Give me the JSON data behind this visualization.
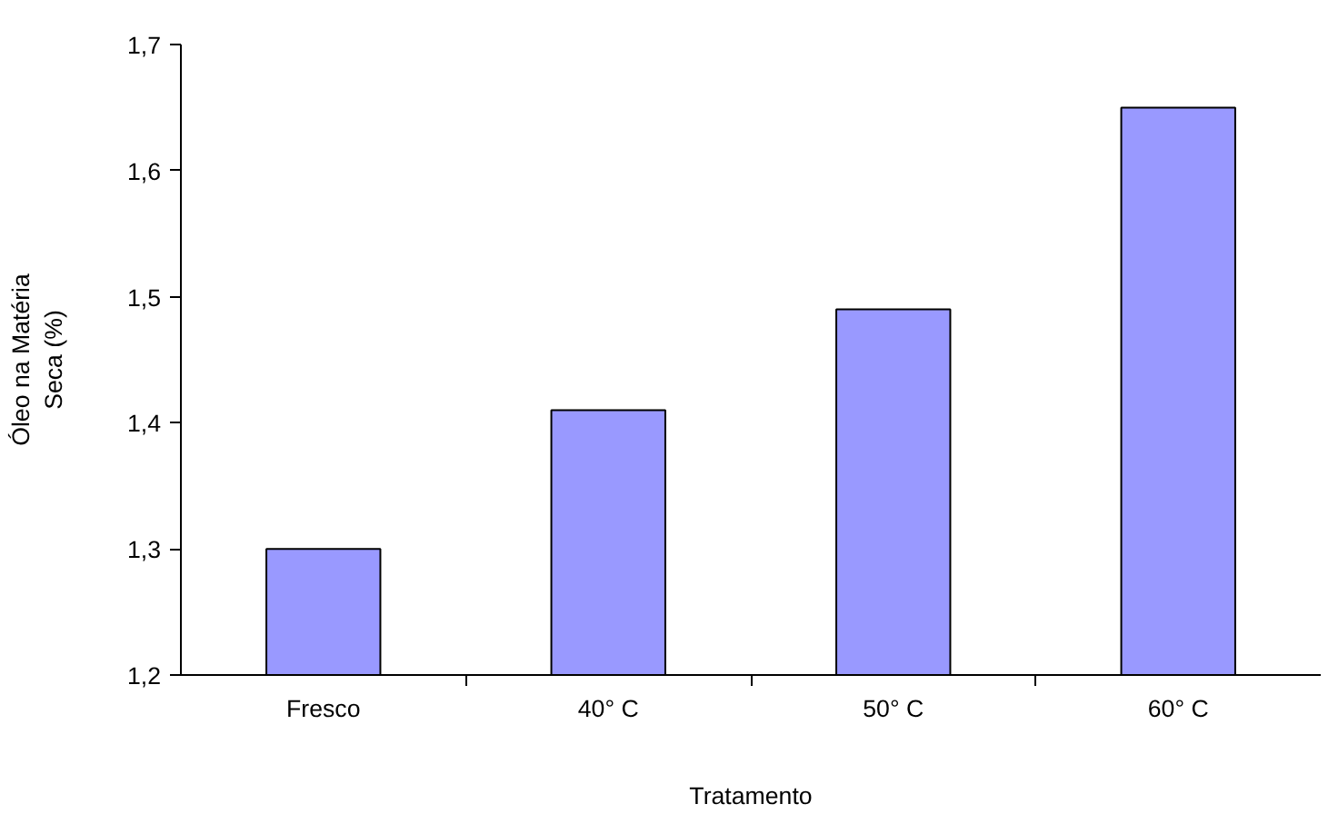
{
  "chart_data": {
    "type": "bar",
    "xlabel": "Tratamento",
    "ylabel": "Óleo na Matéria\nSeca (%)",
    "categories": [
      "Fresco",
      "40° C",
      "50° C",
      "60° C"
    ],
    "values": [
      1.3,
      1.41,
      1.49,
      1.65
    ],
    "color": "#9999ff",
    "ylim": [
      1.2,
      1.7
    ],
    "yticks": [
      {
        "value": 1.2,
        "label": "1,2"
      },
      {
        "value": 1.3,
        "label": "1,3"
      },
      {
        "value": 1.4,
        "label": "1,4"
      },
      {
        "value": 1.5,
        "label": "1,5"
      },
      {
        "value": 1.6,
        "label": "1,6"
      },
      {
        "value": 1.7,
        "label": "1,7"
      }
    ],
    "grid": false
  }
}
